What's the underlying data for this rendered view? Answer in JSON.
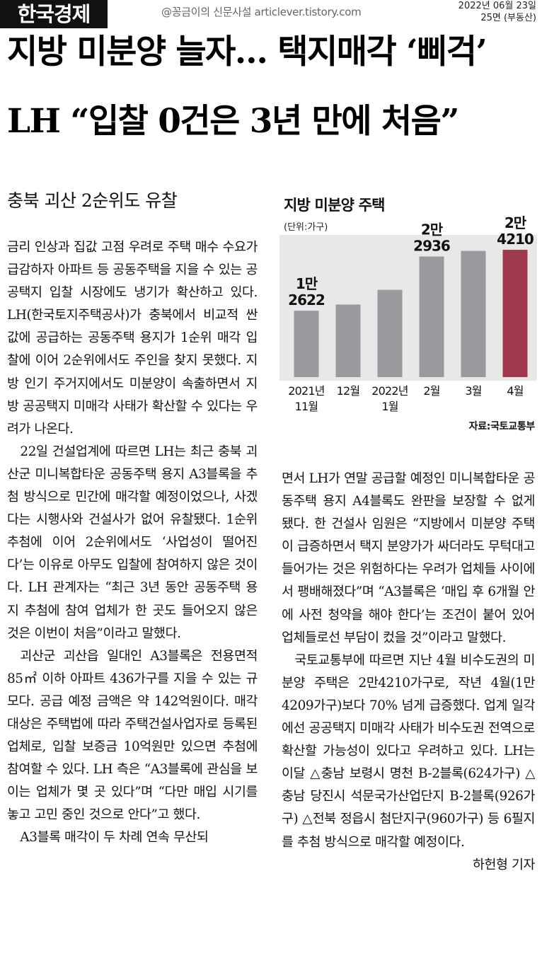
{
  "masthead": {
    "logo": "한국경제",
    "watermark": "@꽁금이의 신문사설 articlever.tistory.com",
    "date": "2022년 06월 23일",
    "page": "25면 (부동산)"
  },
  "headline": {
    "line1": "지방 미분양 늘자… 택지매각 ‘삐걱’",
    "line2": "LH “입찰 0건은 3년 만에 처음”"
  },
  "subheadline": "충북 괴산 2순위도 유찰",
  "article": {
    "left_column": [
      "금리 인상과 집값 고점 우려로 주택 매수 수요가 급감하자 아파트 등 공동주택을 지을 수 있는 공공택지 입찰 시장에도 냉기가 확산하고 있다. LH(한국토지주택공사)가 충북에서 비교적 싼값에 공급하는 공동주택 용지가 1순위 매각 입찰에 이어 2순위에서도 주인을 찾지 못했다. 지방 인기 주거지에서도 미분양이 속출하면서 지방 공공택지 미매각 사태가 확산할 수 있다는 우려가 나온다.",
      "22일 건설업계에 따르면 LH는 최근 충북 괴산군 미니복합타운 공동주택 용지 A3블록을 추첨 방식으로 민간에 매각할 예정이었으나, 사겠다는 시행사와 건설사가 없어 유찰됐다. 1순위 추첨에 이어 2순위에서도 ‘사업성이 떨어진다’는 이유로 아무도 입찰에 참여하지 않은 것이다. LH 관계자는 “최근 3년 동안 공동주택 용지 추첨에 참여 업체가 한 곳도 들어오지 않은 것은 이번이 처음”이라고 말했다.",
      "괴산군 괴산읍 일대인 A3블록은 전용면적 85㎡ 이하 아파트 436가구를 지을 수 있는 규모다. 공급 예정 금액은 약 142억원이다. 매각 대상은 주택법에 따라 주택건설사업자로 등록된 업체로, 입찰 보증금 10억원만 있으면 추첨에 참여할 수 있다. LH 측은 “A3블록에 관심을 보이는 업체가 몇 곳 있다”며 “다만 매입 시기를 놓고 고민 중인 것으로 안다”고 했다.",
      "A3블록 매각이 두 차례 연속 무산되"
    ],
    "right_column": [
      "면서 LH가 연말 공급할 예정인 미니복합타운 공동주택 용지 A4블록도 완판을 보장할 수 없게 됐다. 한 건설사 임원은 “지방에서 미분양 주택이 급증하면서 택지 분양가가 싸더라도 무턱대고 들어가는 것은 위험하다는 우려가 업체들 사이에서 팽배해졌다”며 “A3블록은 ‘매입 후 6개월 안에 사전 청약을 해야 한다’는 조건이 붙어 있어 업체들로선 부담이 컸을 것”이라고 말했다.",
      "국토교통부에 따르면 지난 4월 비수도권의 미분양 주택은 2만4210가구로, 작년 4월(1만4209가구)보다 70% 넘게 급증했다. 업계 일각에선 공공택지 미매각 사태가 비수도권 전역으로 확산할 가능성이 있다고 우려하고 있다. LH는 이달 △충남 보령시 명천 B-2블록(624가구) △충남 당진시 석문국가산업단지 B-2블록(926가구) △전북 정읍시 첨단지구(960가구) 등 6필지를 추첨 방식으로 매각할 예정이다."
    ],
    "byline": "하헌형 기자"
  },
  "chart_data": {
    "type": "bar",
    "title": "지방 미분양 주택",
    "unit": "(단위:가구)",
    "source": "자료:국토교통부",
    "categories": [
      [
        "2021년",
        "11월"
      ],
      [
        "12월"
      ],
      [
        "2022년",
        "1월"
      ],
      [
        "2월"
      ],
      [
        "3월"
      ],
      [
        "4월"
      ]
    ],
    "values": [
      12622,
      13800,
      16600,
      22936,
      24000,
      24210
    ],
    "data_labels": [
      [
        "1만",
        "2622"
      ],
      [],
      [],
      [
        "2만",
        "2936"
      ],
      [],
      [
        "2만",
        "4210"
      ]
    ],
    "ylim": [
      0,
      30000
    ],
    "colors": {
      "default": "#999a9e",
      "highlight": "#9f3a4e"
    },
    "highlight_index": 5,
    "grid": false,
    "legend": "none"
  }
}
